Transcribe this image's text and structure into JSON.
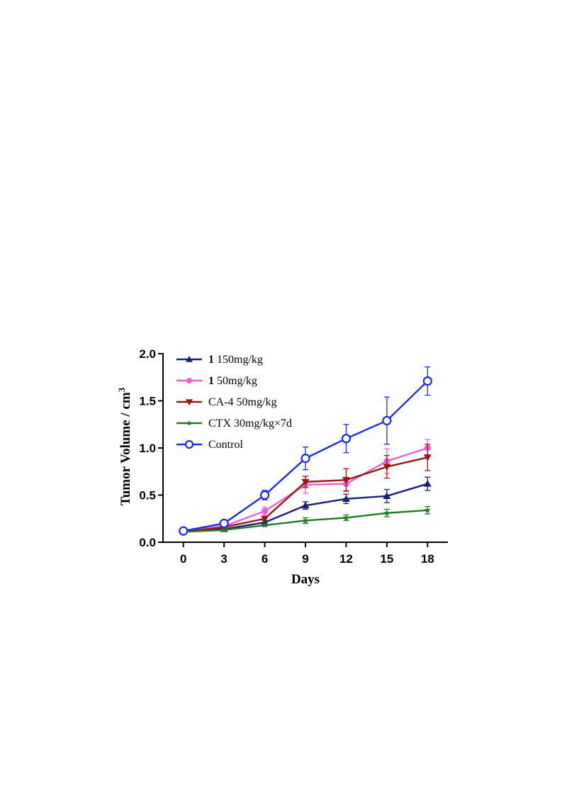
{
  "chart_data": {
    "type": "line",
    "xlabel": "Days",
    "ylabel": "Tumor Volume / cm",
    "ylabel_superscript": "3",
    "x": [
      0,
      3,
      6,
      9,
      12,
      15,
      18
    ],
    "xticks": [
      "0",
      "3",
      "6",
      "9",
      "12",
      "15",
      "18"
    ],
    "yticks": [
      "0.0",
      "0.5",
      "1.0",
      "1.5",
      "2.0"
    ],
    "xlim": [
      -1.5,
      19.5
    ],
    "ylim": [
      0,
      2.0
    ],
    "legend_position": "top-left",
    "series": [
      {
        "name": "1 150mg/kg",
        "name_bold_part": "1",
        "name_rest": " 150mg/kg",
        "color": "#1b1f7a",
        "marker": "triangle-up",
        "values": [
          0.12,
          0.14,
          0.21,
          0.39,
          0.46,
          0.49,
          0.62
        ],
        "errors": [
          0.01,
          0.01,
          0.02,
          0.04,
          0.05,
          0.07,
          0.07
        ]
      },
      {
        "name": "1 50mg/kg",
        "name_bold_part": "1",
        "name_rest": " 50mg/kg",
        "color": "#ee5fd3",
        "marker": "circle-filled",
        "values": [
          0.12,
          0.17,
          0.33,
          0.61,
          0.62,
          0.86,
          1.0
        ],
        "errors": [
          0.01,
          0.01,
          0.04,
          0.09,
          0.07,
          0.13,
          0.09
        ]
      },
      {
        "name": "CA-4 50mg/kg",
        "color": "#9b1616",
        "marker": "triangle-down",
        "values": [
          0.11,
          0.16,
          0.25,
          0.64,
          0.66,
          0.8,
          0.9
        ],
        "errors": [
          0.01,
          0.01,
          0.02,
          0.06,
          0.12,
          0.12,
          0.14
        ]
      },
      {
        "name": "CTX 30mg/kg×7d",
        "color": "#237a23",
        "marker": "star",
        "values": [
          0.11,
          0.13,
          0.18,
          0.23,
          0.26,
          0.31,
          0.34
        ],
        "errors": [
          0.01,
          0.01,
          0.01,
          0.03,
          0.03,
          0.04,
          0.04
        ]
      },
      {
        "name": "Control",
        "color": "#1c2be8",
        "marker": "circle-open",
        "values": [
          0.12,
          0.2,
          0.5,
          0.89,
          1.1,
          1.29,
          1.71
        ],
        "errors": [
          0.01,
          0.02,
          0.05,
          0.12,
          0.15,
          0.25,
          0.15
        ]
      }
    ]
  }
}
